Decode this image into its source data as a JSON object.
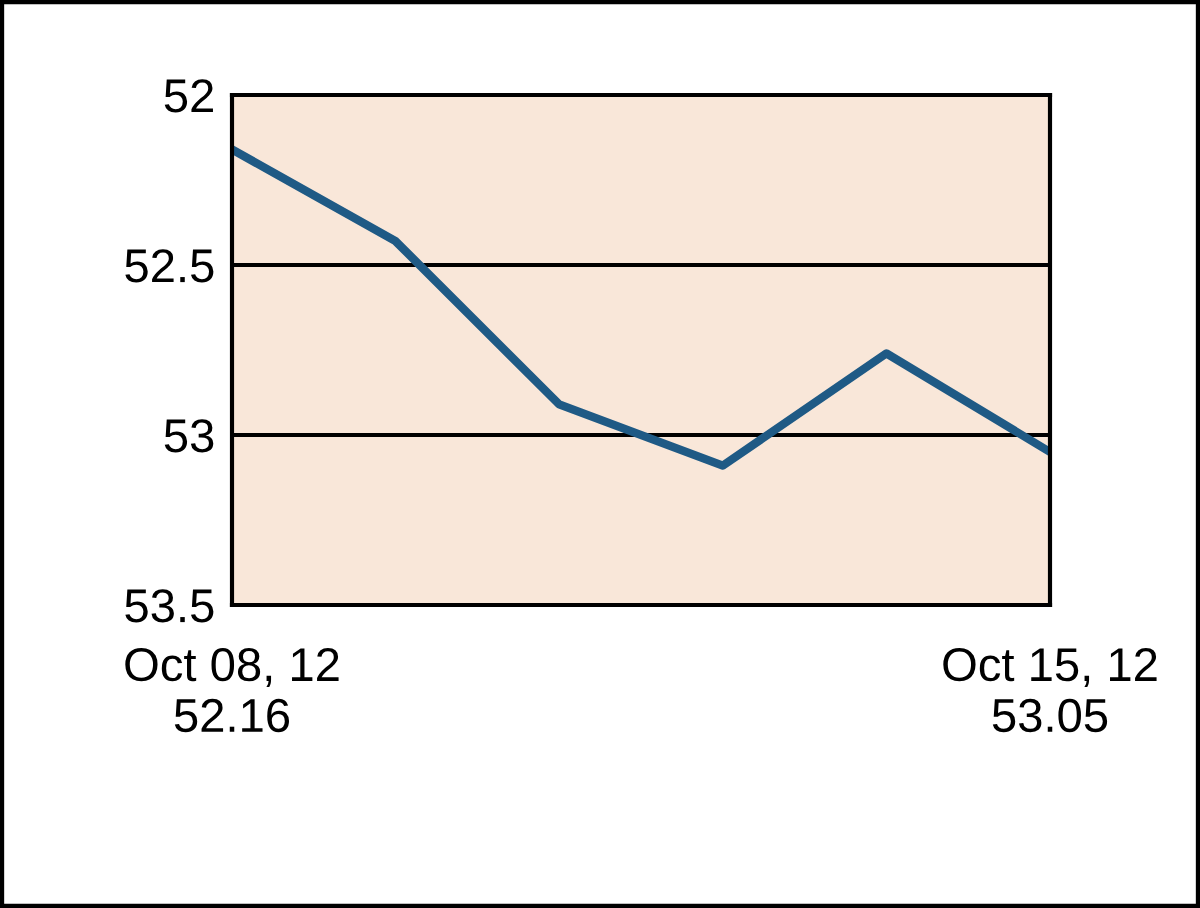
{
  "chart_data": {
    "type": "line",
    "categories": [
      "Oct 08, 12\n52.16",
      null,
      null,
      null,
      null,
      "Oct 15, 12\n53.05"
    ],
    "series": [
      {
        "color": "#1f5a85",
        "values": [
          52.16,
          52.43,
          52.91,
          53.09,
          52.76,
          53.05
        ]
      }
    ],
    "ylim": [
      53.5,
      52
    ],
    "yticks": [
      {
        "value": 52,
        "label": "52"
      },
      {
        "value": 52.5,
        "label": "52.5"
      },
      {
        "value": 53,
        "label": "53"
      },
      {
        "value": 53.5,
        "label": "53.5"
      }
    ],
    "grid": "y",
    "marker": "none",
    "line_style": "solid",
    "legend": false
  }
}
